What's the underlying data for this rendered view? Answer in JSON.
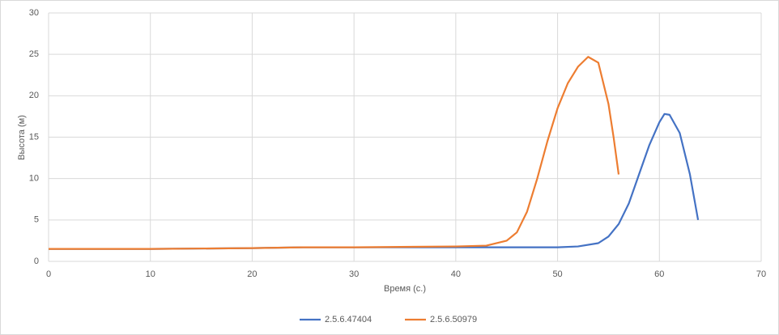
{
  "chart_data": {
    "type": "line",
    "x_label": "Время (с.)",
    "y_label": "Высота (м)",
    "xlim": [
      0,
      70
    ],
    "xticks": [
      0,
      10,
      20,
      30,
      40,
      50,
      60,
      70
    ],
    "ylim": [
      0,
      30
    ],
    "yticks": [
      0,
      5,
      10,
      15,
      20,
      25,
      30
    ],
    "grid": true,
    "legend": "bottom",
    "series": [
      {
        "name": "2.5.6.47404",
        "color": "#4472c4",
        "x": [
          0,
          10,
          20,
          25,
          30,
          40,
          45,
          48,
          50,
          52,
          54,
          55,
          56,
          57,
          58,
          59,
          60,
          60.5,
          61,
          62,
          63,
          63.8
        ],
        "values": [
          1.5,
          1.5,
          1.6,
          1.7,
          1.7,
          1.7,
          1.7,
          1.7,
          1.7,
          1.8,
          2.2,
          3,
          4.5,
          7,
          10.5,
          14,
          16.8,
          17.8,
          17.7,
          15.5,
          10.5,
          5
        ]
      },
      {
        "name": "2.5.6.50979",
        "color": "#ed7d31",
        "x": [
          0,
          10,
          20,
          25,
          30,
          40,
          43,
          45,
          46,
          47,
          48,
          49,
          50,
          51,
          52,
          53,
          54,
          55,
          55.5,
          56
        ],
        "values": [
          1.5,
          1.5,
          1.6,
          1.7,
          1.7,
          1.8,
          1.9,
          2.5,
          3.5,
          6,
          10,
          14.5,
          18.5,
          21.5,
          23.5,
          24.7,
          24,
          19,
          15,
          10.5
        ]
      }
    ]
  }
}
